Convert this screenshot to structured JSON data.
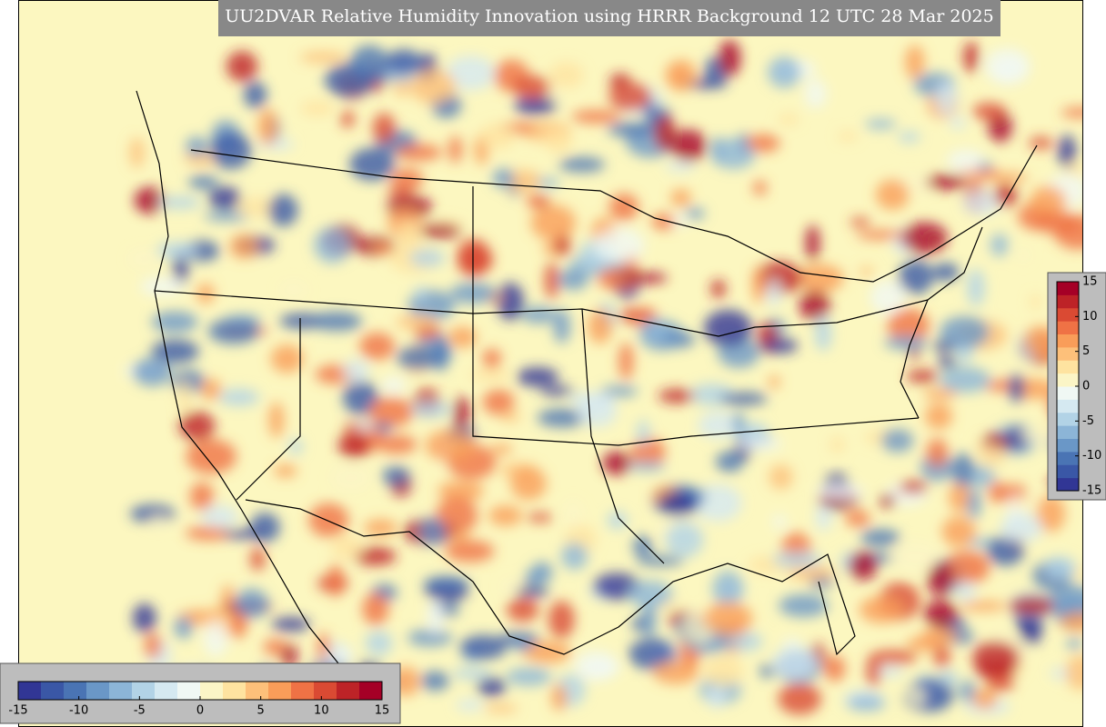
{
  "title": "UU2DVAR Relative Humidity Innovation using HRRR Background 12 UTC 28 Mar 2025",
  "colorbar": {
    "lim": [
      -15,
      15
    ],
    "ticks": [
      -15,
      -10,
      -5,
      0,
      5,
      10,
      15
    ],
    "colors": [
      "#313695",
      "#3a57a6",
      "#4a74b4",
      "#6a97c7",
      "#8cb5d7",
      "#b2d3e6",
      "#d5e9f1",
      "#f0f8f4",
      "#fbf5c6",
      "#fee3a0",
      "#fdc07a",
      "#f99d59",
      "#ef7245",
      "#da4a33",
      "#bd2327",
      "#a50026"
    ]
  },
  "vertical_colorbar": {
    "lim": [
      -15,
      15
    ],
    "ticks": [
      -15,
      -10,
      -5,
      0,
      5,
      10,
      15
    ],
    "colors": [
      "#313695",
      "#3a57a6",
      "#4a74b4",
      "#6a97c7",
      "#8cb5d7",
      "#b2d3e6",
      "#d5e9f1",
      "#f0f8f4",
      "#fbf5c6",
      "#fee3a0",
      "#fdc07a",
      "#f99d59",
      "#ef7245",
      "#da4a33",
      "#bd2327",
      "#a50026"
    ]
  }
}
